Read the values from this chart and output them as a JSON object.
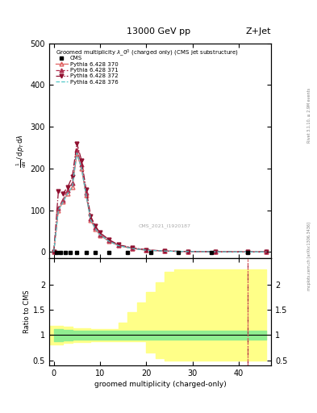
{
  "title_top": "13000 GeV pp",
  "title_right": "Z+Jet",
  "watermark": "CMS_2021_I1920187",
  "rivet_text": "Rivet 3.1.10, ≥ 2.9M events",
  "mcplots_text": "mcplots.cern.ch [arXiv:1306.3436]",
  "xlabel": "groomed multiplicity (charged-only)",
  "ylabel_ratio": "Ratio to CMS",
  "cms_x": [
    0.5,
    1.5,
    2.5,
    3.5,
    5,
    7,
    9,
    12,
    16,
    21,
    27,
    34,
    42
  ],
  "cms_y": [
    -2,
    -2,
    -2,
    -2,
    -2,
    -2,
    -2,
    -2,
    -2,
    -2,
    -2,
    -2,
    -2
  ],
  "py370_x": [
    0,
    1,
    2,
    3,
    4,
    5,
    6,
    7,
    8,
    9,
    10,
    12,
    14,
    17,
    20,
    24,
    29,
    35,
    42,
    46
  ],
  "py370_y": [
    0,
    100,
    120,
    140,
    155,
    235,
    200,
    135,
    75,
    55,
    40,
    25,
    15,
    8,
    4,
    2,
    0.8,
    0.3,
    0.05,
    0
  ],
  "py371_x": [
    0,
    1,
    2,
    3,
    4,
    5,
    6,
    7,
    8,
    9,
    10,
    12,
    14,
    17,
    20,
    24,
    29,
    35,
    42,
    46
  ],
  "py371_y": [
    0,
    105,
    125,
    148,
    165,
    245,
    210,
    142,
    80,
    58,
    42,
    27,
    16,
    9,
    4.5,
    2,
    0.8,
    0.3,
    0.05,
    0
  ],
  "py372_x": [
    0,
    1,
    2,
    3,
    4,
    5,
    6,
    7,
    8,
    9,
    10,
    12,
    14,
    17,
    20,
    24,
    29,
    35,
    42,
    46
  ],
  "py372_y": [
    0,
    145,
    140,
    155,
    180,
    260,
    220,
    150,
    85,
    62,
    46,
    29,
    17,
    10,
    5,
    2.2,
    0.9,
    0.3,
    0.05,
    0
  ],
  "py376_x": [
    0,
    1,
    2,
    3,
    4,
    5,
    6,
    7,
    8,
    9,
    10,
    12,
    14,
    17,
    20,
    24,
    29,
    35,
    42,
    46
  ],
  "py376_y": [
    0,
    100,
    120,
    140,
    156,
    237,
    201,
    136,
    76,
    56,
    41,
    25,
    15,
    8,
    4,
    2,
    0.8,
    0.3,
    0.05,
    0
  ],
  "xlim": [
    -1,
    47
  ],
  "ylim_main": [
    -15,
    500
  ],
  "ylim_ratio": [
    0.4,
    2.52
  ],
  "main_yticks": [
    0,
    100,
    200,
    300,
    400,
    500
  ],
  "ratio_yticks": [
    0.5,
    1.0,
    1.5,
    2.0
  ],
  "ratio_ytick_labels": [
    "0.5",
    "1",
    "1.5",
    "2"
  ],
  "green_x": [
    0,
    2,
    4,
    6,
    8,
    10,
    12,
    14,
    16,
    18,
    20,
    22,
    24,
    26,
    28,
    30,
    32,
    34,
    36,
    38,
    40,
    42,
    44,
    46
  ],
  "green_low": [
    0.88,
    0.9,
    0.91,
    0.91,
    0.91,
    0.91,
    0.91,
    0.91,
    0.91,
    0.91,
    0.91,
    0.91,
    0.91,
    0.91,
    0.91,
    0.91,
    0.91,
    0.91,
    0.91,
    0.91,
    0.91,
    0.91,
    0.91,
    0.91
  ],
  "green_high": [
    1.12,
    1.1,
    1.09,
    1.09,
    1.09,
    1.09,
    1.09,
    1.09,
    1.09,
    1.09,
    1.09,
    1.09,
    1.09,
    1.09,
    1.09,
    1.09,
    1.09,
    1.09,
    1.09,
    1.09,
    1.09,
    1.09,
    1.09,
    1.09
  ],
  "yellow_x": [
    -1,
    0,
    2,
    4,
    6,
    8,
    10,
    12,
    14,
    16,
    18,
    20,
    22,
    24,
    26,
    28,
    30,
    32,
    34,
    36,
    38,
    40,
    42,
    44,
    46
  ],
  "yellow_low": [
    0.82,
    0.82,
    0.84,
    0.86,
    0.87,
    0.88,
    0.88,
    0.88,
    0.88,
    0.88,
    0.88,
    0.65,
    0.55,
    0.5,
    0.5,
    0.5,
    0.5,
    0.5,
    0.5,
    0.5,
    0.5,
    0.5,
    0.5,
    0.5,
    0.5
  ],
  "yellow_high": [
    1.18,
    1.18,
    1.16,
    1.14,
    1.13,
    1.12,
    1.12,
    1.12,
    1.25,
    1.45,
    1.65,
    1.85,
    2.05,
    2.25,
    2.3,
    2.3,
    2.3,
    2.3,
    2.3,
    2.3,
    2.3,
    2.3,
    2.3,
    2.3,
    2.3
  ],
  "colors": {
    "py370": "#e06060",
    "py371": "#b03050",
    "py372": "#901030",
    "py376": "#50c8c8",
    "cms": "black",
    "green_band": "#90ee90",
    "yellow_band": "#ffff88"
  }
}
